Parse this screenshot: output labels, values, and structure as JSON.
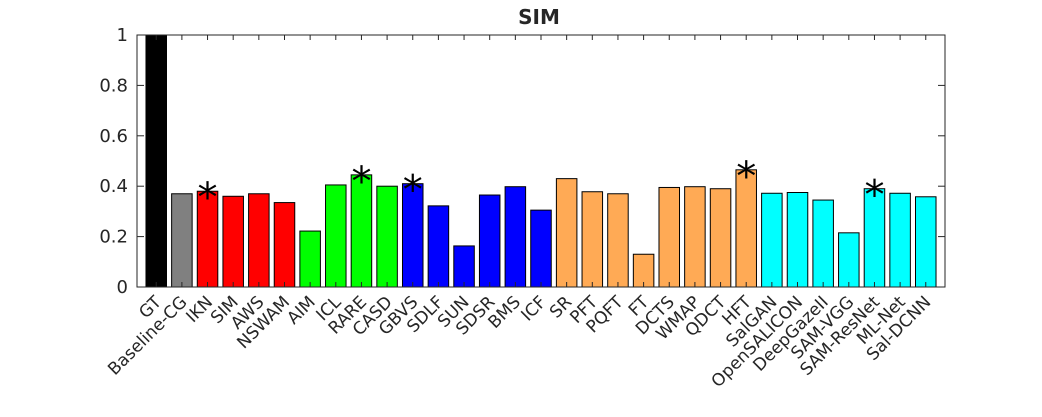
{
  "chart_data": {
    "type": "bar",
    "title": "SIM",
    "xlabel": "",
    "ylabel": "",
    "ylim": [
      0,
      1
    ],
    "yticks": [
      "0",
      "0.2",
      "0.4",
      "0.6",
      "0.8",
      "1"
    ],
    "grid": false,
    "categories": [
      "GT",
      "Baseline-CG",
      "IKN",
      "SIM",
      "AWS",
      "NSWAM",
      "AIM",
      "ICL",
      "RARE",
      "CASD",
      "GBVS",
      "SDLF",
      "SUN",
      "SDSR",
      "BMS",
      "ICF",
      "SR",
      "PFT",
      "PQFT",
      "FT",
      "DCTS",
      "WMAP",
      "QDCT",
      "HFT",
      "SalGAN",
      "OpenSALICON",
      "DeepGazeII",
      "SAM-VGG",
      "SAM-ResNet",
      "ML-Net",
      "Sal-DCNN"
    ],
    "values": [
      1.0,
      0.37,
      0.38,
      0.36,
      0.37,
      0.335,
      0.222,
      0.405,
      0.445,
      0.4,
      0.41,
      0.322,
      0.163,
      0.365,
      0.398,
      0.305,
      0.43,
      0.378,
      0.37,
      0.13,
      0.395,
      0.398,
      0.39,
      0.465,
      0.372,
      0.375,
      0.345,
      0.215,
      0.39,
      0.372,
      0.358
    ],
    "colors": [
      "#000000",
      "#808080",
      "#ff0000",
      "#ff0000",
      "#ff0000",
      "#ff0000",
      "#00ff00",
      "#00ff00",
      "#00ff00",
      "#00ff00",
      "#0000ff",
      "#0000ff",
      "#0000ff",
      "#0000ff",
      "#0000ff",
      "#0000ff",
      "#ffaa55",
      "#ffaa55",
      "#ffaa55",
      "#ffaa55",
      "#ffaa55",
      "#ffaa55",
      "#ffaa55",
      "#ffaa55",
      "#00ffff",
      "#00ffff",
      "#00ffff",
      "#00ffff",
      "#00ffff",
      "#00ffff",
      "#00ffff"
    ],
    "annotations": [
      {
        "category": "IKN",
        "text": "*"
      },
      {
        "category": "RARE",
        "text": "*"
      },
      {
        "category": "GBVS",
        "text": "*"
      },
      {
        "category": "HFT",
        "text": "*"
      },
      {
        "category": "SAM-ResNet",
        "text": "*"
      }
    ]
  }
}
